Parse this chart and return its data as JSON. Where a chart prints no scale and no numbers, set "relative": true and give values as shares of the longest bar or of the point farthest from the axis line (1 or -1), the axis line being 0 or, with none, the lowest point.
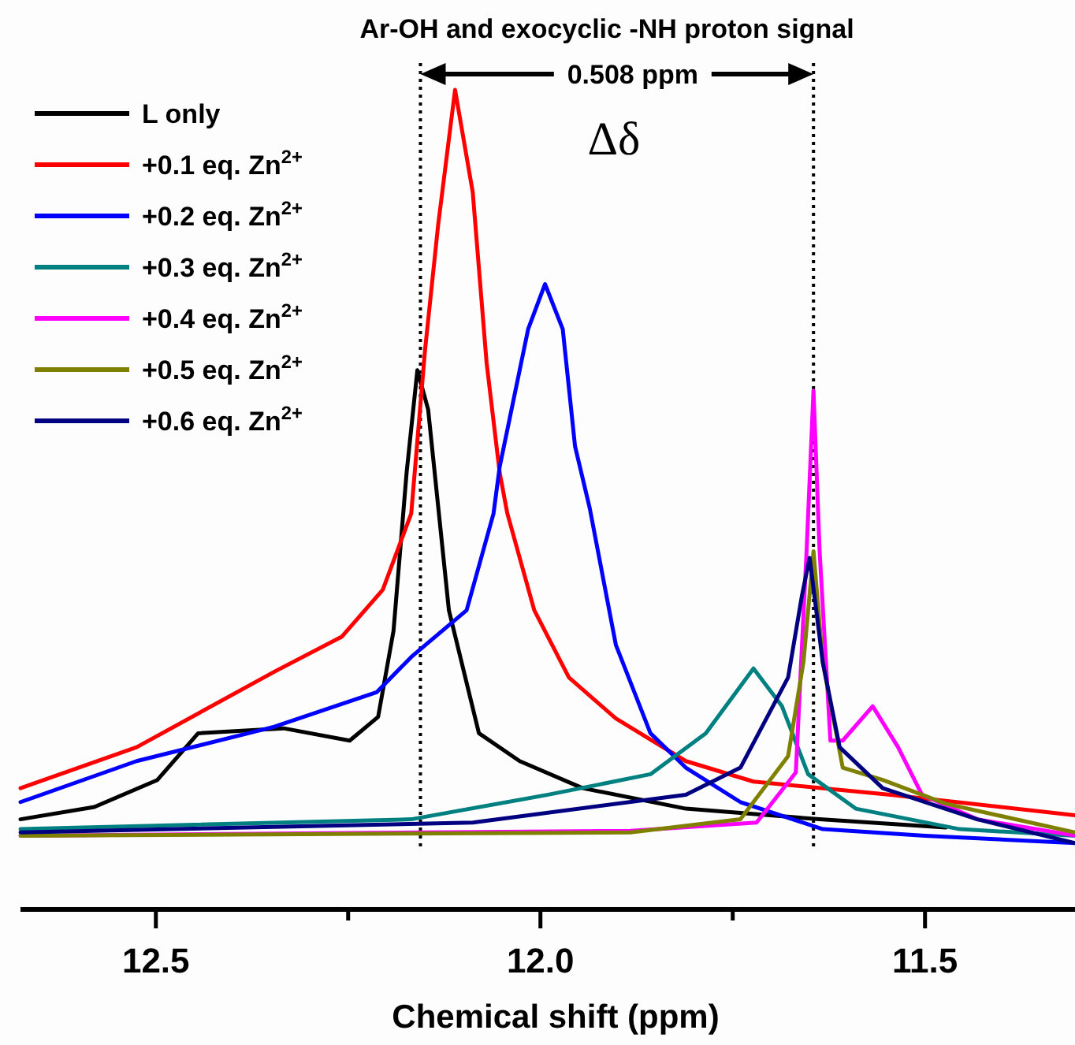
{
  "chart_data": {
    "type": "line",
    "title": "Ar-OH and exocyclic -NH proton signal",
    "xlabel": "Chemical shift (ppm)",
    "relative": true,
    "xlim": [
      12.676,
      11.305
    ],
    "xticks": [
      12.5,
      {
        "value": 12.25,
        "label": null
      },
      "12.0",
      {
        "value": 11.75,
        "label": null
      },
      11.5
    ],
    "legend": "top left",
    "grid": false,
    "line_style": "solid",
    "marker": "none",
    "annotations": [
      "0.508 ppm",
      "Δδ"
    ],
    "ref_lines": [
      {
        "axis": "x",
        "value": 12.156,
        "line_style": "dotted",
        "color": "#000000"
      },
      {
        "axis": "x",
        "value": 11.645,
        "line_style": "dotted",
        "color": "#000000"
      }
    ],
    "series": [
      {
        "name": "L only",
        "color": "#000000",
        "x": [
          12.676,
          12.58,
          12.498,
          12.445,
          12.334,
          12.248,
          12.211,
          12.191,
          12.174,
          12.16,
          12.146,
          12.119,
          12.08,
          12.027,
          11.945,
          11.811,
          11.637,
          11.473
        ],
        "values": [
          0.11,
          0.125,
          0.158,
          0.215,
          0.221,
          0.206,
          0.235,
          0.34,
          0.533,
          0.658,
          0.61,
          0.365,
          0.215,
          0.181,
          0.148,
          0.123,
          0.11,
          0.1
        ]
      },
      {
        "name": "+0.1 eq. Zn$^{2+}$",
        "color": "#ff0000",
        "x": [
          12.676,
          12.525,
          12.346,
          12.258,
          12.205,
          12.168,
          12.15,
          12.133,
          12.111,
          12.088,
          12.07,
          12.053,
          12.043,
          12.008,
          11.963,
          11.902,
          11.811,
          11.723,
          11.545,
          11.305
        ],
        "values": [
          0.148,
          0.198,
          0.29,
          0.333,
          0.39,
          0.483,
          0.683,
          0.835,
          1.0,
          0.875,
          0.667,
          0.533,
          0.483,
          0.365,
          0.283,
          0.233,
          0.181,
          0.156,
          0.14,
          0.115
        ]
      },
      {
        "name": "+0.2 eq. Zn$^{2+}$",
        "color": "#0000ff",
        "x": [
          12.676,
          12.525,
          12.346,
          12.213,
          12.168,
          12.096,
          12.061,
          12.053,
          12.016,
          11.994,
          11.971,
          11.955,
          11.936,
          11.902,
          11.857,
          11.811,
          11.74,
          11.633,
          11.5,
          11.305
        ],
        "values": [
          0.131,
          0.181,
          0.223,
          0.265,
          0.308,
          0.365,
          0.483,
          0.54,
          0.708,
          0.763,
          0.708,
          0.565,
          0.49,
          0.323,
          0.215,
          0.173,
          0.131,
          0.098,
          0.09,
          0.081
        ]
      },
      {
        "name": "+0.3 eq. Zn$^{2+}$",
        "color": "#008080",
        "x": [
          12.676,
          12.168,
          11.99,
          11.857,
          11.785,
          11.723,
          11.686,
          11.652,
          11.59,
          11.455,
          11.305
        ],
        "values": [
          0.098,
          0.11,
          0.14,
          0.165,
          0.215,
          0.294,
          0.248,
          0.165,
          0.123,
          0.098,
          0.09
        ]
      },
      {
        "name": "+0.4 eq. Zn$^{2+}$",
        "color": "#ff00ff",
        "x": [
          12.676,
          11.883,
          11.719,
          11.668,
          11.654,
          11.645,
          11.637,
          11.623,
          11.607,
          11.568,
          11.535,
          11.504,
          11.432,
          11.305
        ],
        "values": [
          0.09,
          0.096,
          0.106,
          0.167,
          0.437,
          0.633,
          0.437,
          0.206,
          0.206,
          0.248,
          0.198,
          0.14,
          0.11,
          0.09
        ]
      },
      {
        "name": "+0.5 eq. Zn$^{2+}$",
        "color": "#808000",
        "x": [
          12.676,
          11.883,
          11.74,
          11.678,
          11.658,
          11.645,
          11.633,
          11.607,
          11.555,
          11.473,
          11.305
        ],
        "values": [
          0.09,
          0.094,
          0.11,
          0.187,
          0.302,
          0.437,
          0.302,
          0.173,
          0.158,
          0.129,
          0.094
        ]
      },
      {
        "name": "+0.6 eq. Zn$^{2+}$",
        "color": "#000080",
        "x": [
          12.676,
          12.088,
          11.811,
          11.74,
          11.678,
          11.66,
          11.65,
          11.633,
          11.611,
          11.555,
          11.432,
          11.305
        ],
        "values": [
          0.094,
          0.106,
          0.14,
          0.173,
          0.283,
          0.383,
          0.429,
          0.302,
          0.198,
          0.148,
          0.11,
          0.081
        ]
      }
    ]
  }
}
